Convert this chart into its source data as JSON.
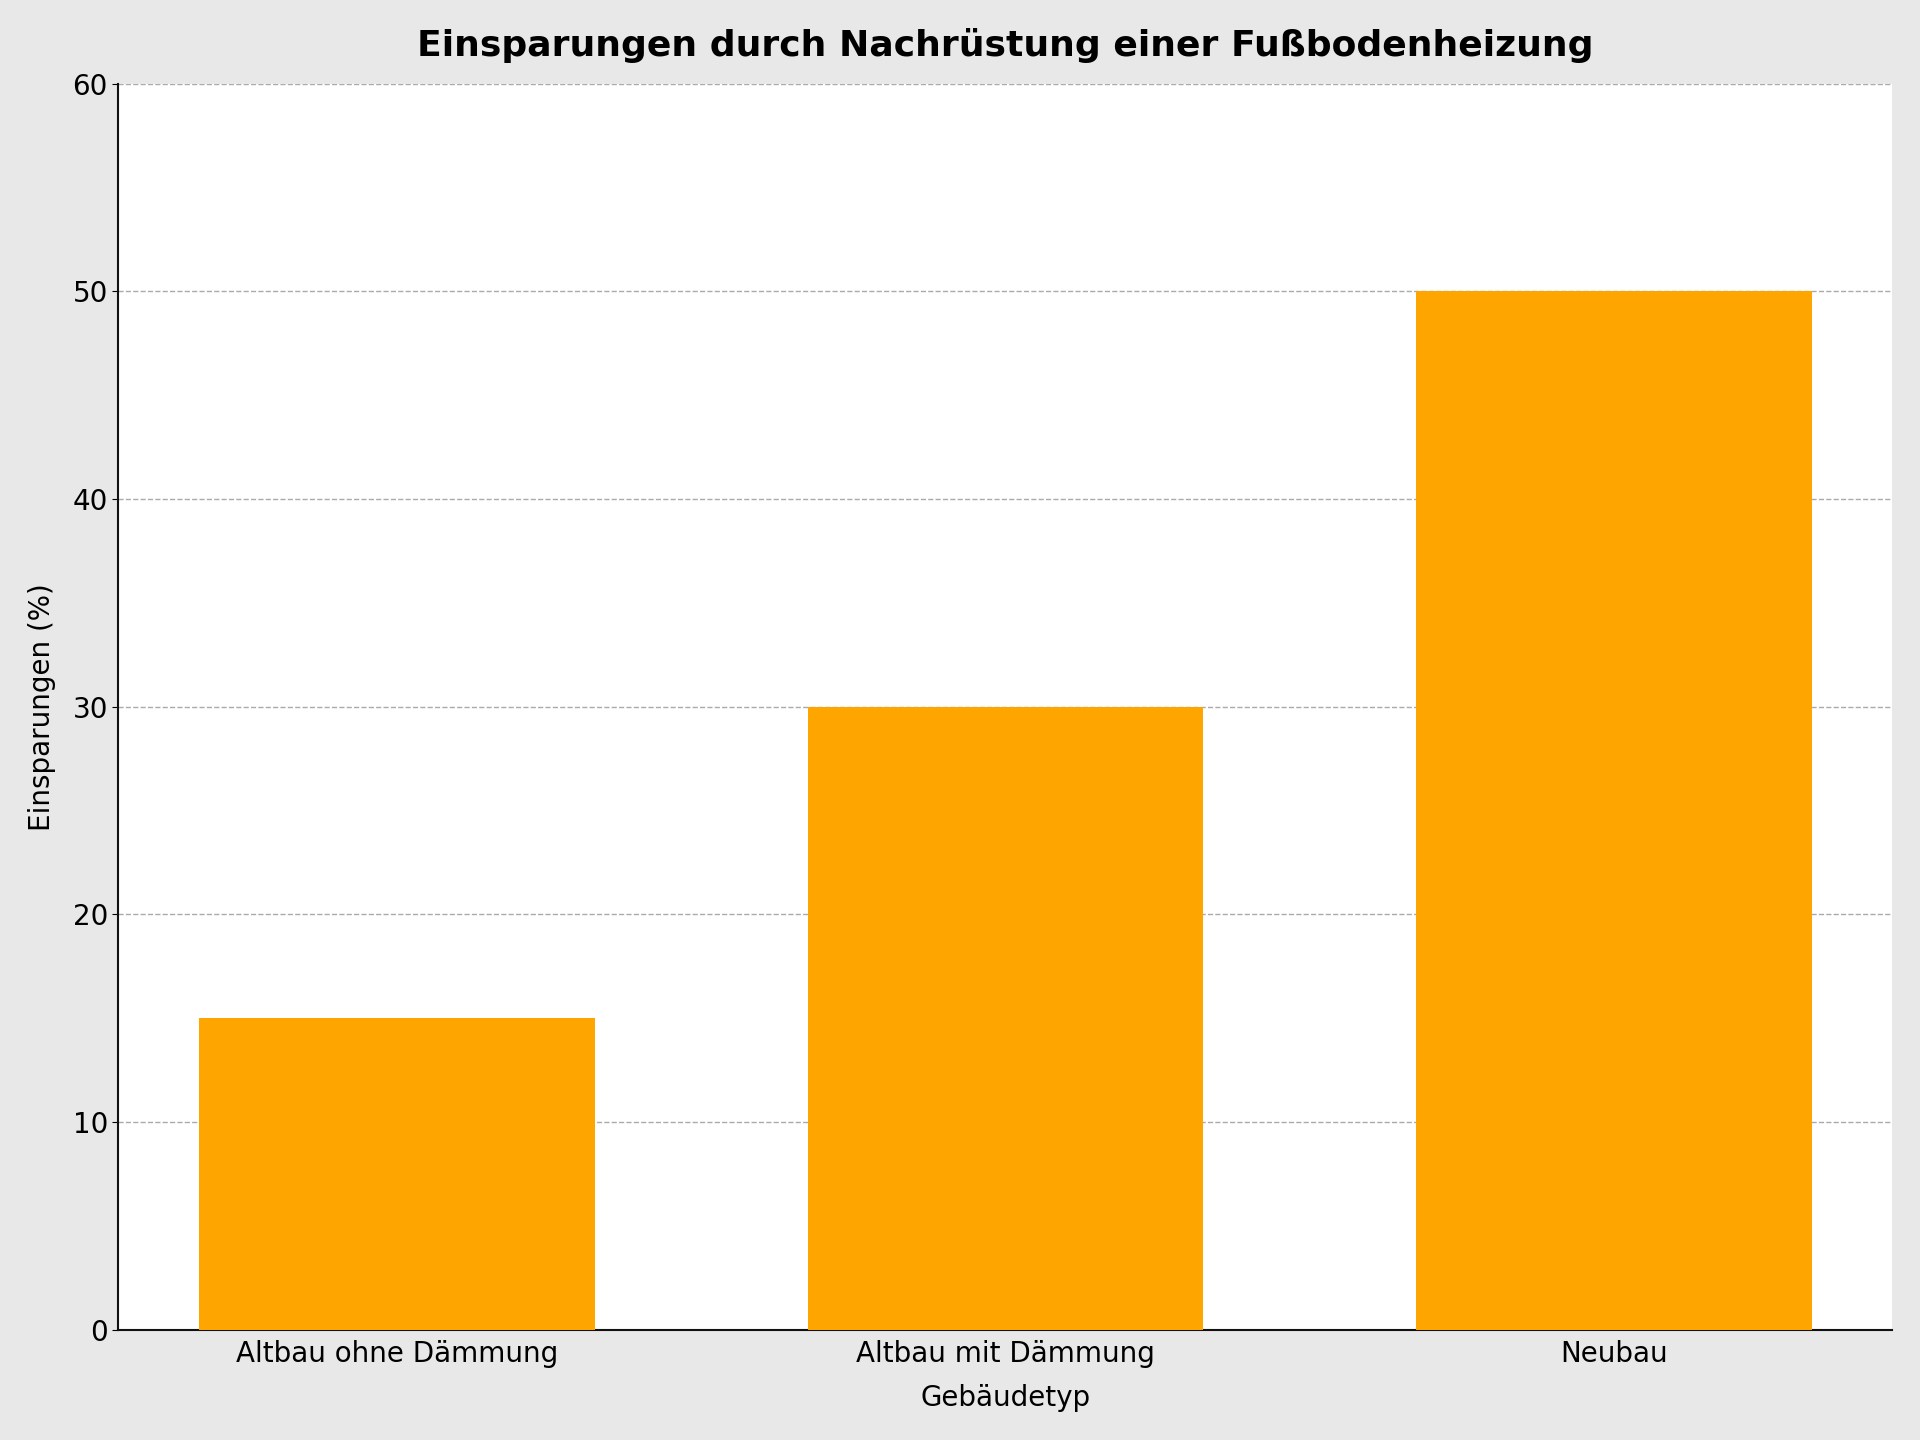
{
  "title": "Einsparungen durch Nachrüstung einer Fußbodenheizung",
  "xlabel": "Gebäudetyp",
  "ylabel": "Einsparungen (%)",
  "categories": [
    "Altbau ohne Dämmung",
    "Altbau mit Dämmung",
    "Neubau"
  ],
  "values": [
    15,
    30,
    50
  ],
  "bar_color": "#FFA500",
  "ylim": [
    0,
    60
  ],
  "yticks": [
    0,
    10,
    20,
    30,
    40,
    50,
    60
  ],
  "title_fontsize": 26,
  "label_fontsize": 20,
  "tick_fontsize": 20,
  "background_color": "#ffffff",
  "figure_facecolor": "#e8e8e8",
  "grid_color": "#aaaaaa",
  "grid_linestyle": "--",
  "bar_width": 0.65,
  "spine_color": "#111111"
}
